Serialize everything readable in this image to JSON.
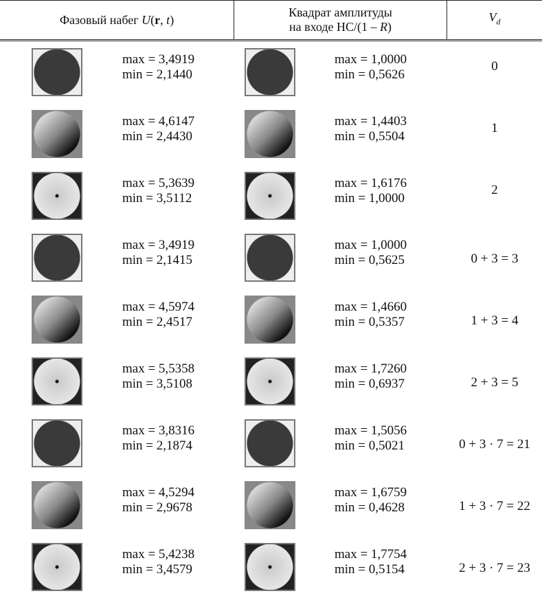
{
  "header": {
    "phase": [
      "Фазовый набег ",
      "U",
      "(",
      "r",
      ", ",
      "t",
      ")"
    ],
    "amplitude": {
      "line1": "Квадрат амплитуды",
      "line2": [
        "на входе НС/(1 – ",
        "R",
        ")"
      ]
    },
    "vd": [
      "V",
      "d"
    ]
  },
  "rows": [
    {
      "phase": [
        "max = 3,4919",
        "min = 2,1440"
      ],
      "amplitude": [
        "max = 1,0000",
        "min = 0,5626"
      ],
      "vd": "0"
    },
    {
      "phase": [
        "max = 4,6147",
        "min = 2,4430"
      ],
      "amplitude": [
        "max = 1,4403",
        "min = 0,5504"
      ],
      "vd": "1"
    },
    {
      "phase": [
        "max = 5,3639",
        "min = 3,5112"
      ],
      "amplitude": [
        "max = 1,6176",
        "min = 1,0000"
      ],
      "vd": "2"
    },
    {
      "phase": [
        "max = 3,4919",
        "min = 2,1415"
      ],
      "amplitude": [
        "max = 1,0000",
        "min = 0,5625"
      ],
      "vd": "0 + 3 = 3"
    },
    {
      "phase": [
        "max = 4,5974",
        "min = 2,4517"
      ],
      "amplitude": [
        "max = 1,4660",
        "min = 0,5357"
      ],
      "vd": "1 + 3 = 4"
    },
    {
      "phase": [
        "max = 5,5358",
        "min = 3,5108"
      ],
      "amplitude": [
        "max = 1,7260",
        "min = 0,6937"
      ],
      "vd": "2 + 3 = 5"
    },
    {
      "phase": [
        "max = 3,8316",
        "min = 2,1874"
      ],
      "amplitude": [
        "max = 1,5056",
        "min = 0,5021"
      ],
      "vd": "0 + 3 · 7 = 21"
    },
    {
      "phase": [
        "max = 4,5294",
        "min = 2,9678"
      ],
      "amplitude": [
        "max = 1,6759",
        "min = 0,4628"
      ],
      "vd": "1 + 3 · 7 = 22"
    },
    {
      "phase": [
        "max = 5,4238",
        "min = 3,4579"
      ],
      "amplitude": [
        "max = 1,7754",
        "min = 0,5154"
      ],
      "vd": "2 + 3 · 7 = 23"
    }
  ]
}
